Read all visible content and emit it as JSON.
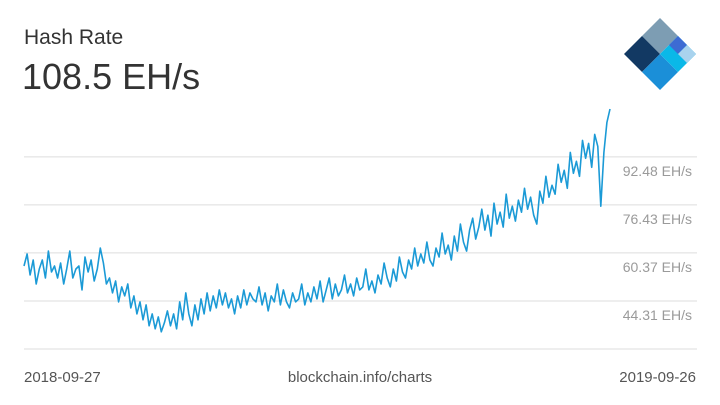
{
  "header": {
    "title": "Hash Rate",
    "current_value": "108.5 EH/s"
  },
  "footer": {
    "start_date": "2018-09-27",
    "source": "blockchain.info/charts",
    "end_date": "2019-09-26"
  },
  "logo": {
    "icon": "blockchain-logo-icon",
    "colors": [
      "#7d9db3",
      "#123963",
      "#1b8fd8",
      "#0ab8e8",
      "#3d6bd3",
      "#a9d3ee"
    ]
  },
  "chart_data": {
    "type": "line",
    "title": "Hash Rate",
    "line_color": "#1b9ad6",
    "grid": true,
    "x_range": [
      "2018-09-27",
      "2019-09-26"
    ],
    "ylim": [
      28.25,
      108.5
    ],
    "yticks": [
      {
        "value": 44.31,
        "label": "44.31 EH/s"
      },
      {
        "value": 60.37,
        "label": "60.37 EH/s"
      },
      {
        "value": 76.43,
        "label": "76.43 EH/s"
      },
      {
        "value": 92.48,
        "label": "92.48 EH/s"
      }
    ],
    "series": [
      {
        "values": [
          56,
          60,
          53,
          58,
          50,
          55,
          58,
          52,
          61,
          54,
          56,
          52,
          57,
          50,
          55,
          61,
          52,
          55,
          56,
          48,
          59,
          54,
          58,
          51,
          55,
          62,
          57,
          50,
          52,
          47,
          51,
          44,
          49,
          46,
          50,
          42,
          46,
          40,
          44,
          38,
          43,
          36,
          40,
          35,
          39,
          34,
          37,
          41,
          36,
          40,
          35,
          44,
          38,
          47,
          40,
          36,
          43,
          38,
          45,
          40,
          47,
          41,
          46,
          42,
          48,
          43,
          47,
          42,
          45,
          40,
          46,
          42,
          48,
          43,
          47,
          45,
          44,
          49,
          43,
          47,
          41,
          46,
          44,
          50,
          43,
          48,
          44,
          42,
          47,
          44,
          45,
          50,
          43,
          47,
          44,
          49,
          45,
          51,
          44,
          48,
          52,
          45,
          50,
          46,
          48,
          53,
          47,
          50,
          46,
          52,
          48,
          49,
          55,
          48,
          51,
          47,
          53,
          50,
          57,
          52,
          49,
          55,
          51,
          59,
          54,
          52,
          58,
          55,
          62,
          56,
          60,
          57,
          64,
          58,
          56,
          62,
          59,
          67,
          60,
          63,
          58,
          66,
          61,
          70,
          64,
          61,
          68,
          72,
          65,
          69,
          75,
          68,
          73,
          66,
          77,
          70,
          74,
          69,
          80,
          72,
          76,
          71,
          78,
          74,
          82,
          75,
          79,
          73,
          70,
          81,
          77,
          86,
          79,
          83,
          80,
          90,
          84,
          88,
          82,
          94,
          87,
          91,
          86,
          98,
          92,
          97,
          89,
          100,
          96,
          76,
          94,
          104,
          108.5
        ]
      }
    ]
  }
}
